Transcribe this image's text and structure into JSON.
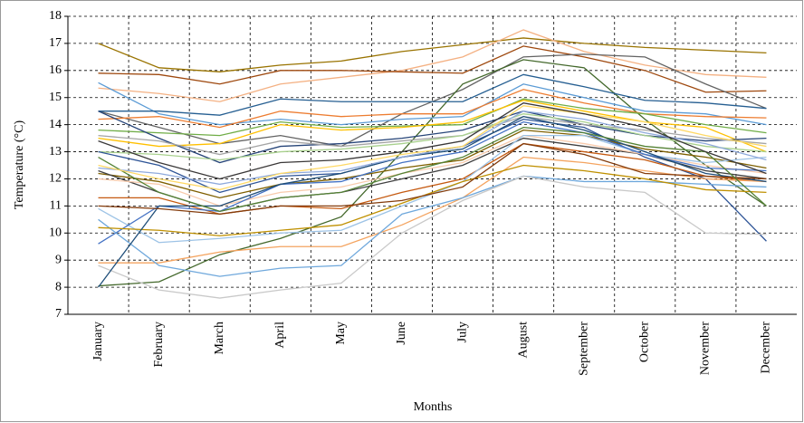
{
  "chart_data": {
    "type": "line",
    "x_label": "Months",
    "y_label": "Temperature (°C)",
    "categories": [
      "January",
      "February",
      "March",
      "April",
      "May",
      "June",
      "July",
      "August",
      "September",
      "October",
      "November",
      "December"
    ],
    "ylim": [
      7,
      18
    ],
    "yticks": [
      7,
      8,
      9,
      10,
      11,
      12,
      13,
      14,
      15,
      16,
      17,
      18
    ],
    "grid": true,
    "series": [
      {
        "color": "#997300",
        "values": [
          17,
          16.1,
          15.95,
          16.2,
          16.35,
          16.7,
          16.95,
          17.2,
          17.0,
          16.85,
          16.75,
          16.65
        ]
      },
      {
        "color": "#f4b183",
        "values": [
          15.35,
          15.15,
          14.85,
          15.5,
          15.75,
          16.0,
          16.5,
          17.5,
          16.7,
          16.2,
          15.85,
          15.75
        ]
      },
      {
        "color": "#9e480e",
        "values": [
          15.9,
          15.85,
          15.5,
          16.0,
          16.0,
          15.95,
          15.9,
          16.9,
          16.5,
          16.0,
          15.2,
          15.25
        ]
      },
      {
        "color": "#636363",
        "values": [
          14.5,
          13.9,
          13.3,
          13.6,
          13.2,
          14.4,
          15.3,
          16.5,
          16.6,
          16.5,
          15.5,
          14.6
        ]
      },
      {
        "color": "#43682b",
        "values": [
          8.05,
          8.2,
          9.2,
          9.8,
          10.6,
          13.0,
          15.5,
          16.4,
          16.1,
          14.2,
          12.5,
          11.0
        ]
      },
      {
        "color": "#5b9bd5",
        "values": [
          15.55,
          14.4,
          14.0,
          14.2,
          14.0,
          14.2,
          14.3,
          15.5,
          15.0,
          14.5,
          14.4,
          14.0
        ]
      },
      {
        "color": "#255e91",
        "values": [
          14.5,
          14.5,
          14.35,
          14.95,
          14.85,
          14.85,
          14.85,
          15.85,
          15.4,
          14.9,
          14.8,
          14.6
        ]
      },
      {
        "color": "#ed7d31",
        "values": [
          14.2,
          14.3,
          13.9,
          14.5,
          14.3,
          14.4,
          14.4,
          15.3,
          14.8,
          14.4,
          14.3,
          14.25
        ]
      },
      {
        "color": "#70ad47",
        "values": [
          13.8,
          13.7,
          13.6,
          14.1,
          13.9,
          13.95,
          14.0,
          14.95,
          14.6,
          14.4,
          14.0,
          13.7
        ]
      },
      {
        "color": "#ffc000",
        "values": [
          13.5,
          13.2,
          13.3,
          14.0,
          13.8,
          13.9,
          14.1,
          14.9,
          14.5,
          14.1,
          13.9,
          13.0
        ]
      },
      {
        "color": "#264478",
        "values": [
          14.5,
          13.5,
          12.6,
          13.2,
          13.3,
          13.5,
          13.8,
          14.5,
          14.0,
          13.6,
          13.4,
          13.5
        ]
      },
      {
        "color": "#a5a5a5",
        "values": [
          13.6,
          13.4,
          12.9,
          13.4,
          13.2,
          13.4,
          13.6,
          14.3,
          14.0,
          13.8,
          13.5,
          13.3
        ]
      },
      {
        "color": "#a9d18e",
        "values": [
          13.0,
          12.9,
          12.7,
          13.0,
          13.1,
          13.3,
          13.6,
          14.4,
          14.1,
          13.6,
          13.2,
          13.0
        ]
      },
      {
        "color": "#2f5597",
        "values": [
          13.0,
          12.5,
          11.5,
          12.1,
          12.2,
          12.8,
          13.2,
          14.2,
          13.9,
          12.8,
          12.0,
          9.7
        ]
      },
      {
        "color": "#7f6000",
        "values": [
          12.2,
          11.9,
          11.3,
          11.8,
          12.0,
          12.4,
          12.7,
          13.8,
          13.6,
          13.1,
          12.8,
          12.4
        ]
      },
      {
        "color": "#404040",
        "values": [
          12.3,
          11.5,
          10.8,
          11.3,
          11.5,
          12.0,
          12.5,
          13.5,
          13.2,
          12.9,
          12.3,
          12.0
        ]
      },
      {
        "color": "#f8cbad",
        "values": [
          12.0,
          11.8,
          11.0,
          11.5,
          11.7,
          12.2,
          12.6,
          13.6,
          13.3,
          12.9,
          12.5,
          12.2
        ]
      },
      {
        "color": "#c55a11",
        "values": [
          11.3,
          11.3,
          10.7,
          11.0,
          10.9,
          11.5,
          12.0,
          13.3,
          13.0,
          12.7,
          12.1,
          11.9
        ]
      },
      {
        "color": "#9dc3e6",
        "values": [
          10.9,
          9.65,
          9.8,
          10.0,
          10.1,
          11.0,
          11.9,
          13.6,
          13.6,
          12.9,
          12.6,
          12.8
        ]
      },
      {
        "color": "#4472c4",
        "values": [
          9.6,
          11.0,
          10.8,
          11.8,
          11.9,
          12.6,
          13.0,
          14.1,
          13.7,
          12.9,
          12.4,
          12.3
        ]
      },
      {
        "color": "#f4a460",
        "values": [
          8.9,
          8.9,
          9.3,
          9.5,
          9.5,
          10.3,
          11.3,
          12.8,
          12.6,
          12.3,
          12.0,
          11.9
        ]
      },
      {
        "color": "#6fa8dc",
        "values": [
          10.5,
          8.8,
          8.4,
          8.7,
          8.8,
          10.7,
          11.3,
          12.1,
          11.9,
          11.9,
          11.8,
          11.7
        ]
      },
      {
        "color": "#c9c9c9",
        "values": [
          8.8,
          7.9,
          7.6,
          7.9,
          8.15,
          10.0,
          11.2,
          12.1,
          11.7,
          11.5,
          10.0,
          9.95
        ]
      },
      {
        "color": "#bf9000",
        "values": [
          10.2,
          10.1,
          9.9,
          10.1,
          10.3,
          11.1,
          11.9,
          12.5,
          12.3,
          12.0,
          11.6,
          11.5
        ]
      },
      {
        "color": "#1f4e79",
        "values": [
          8.0,
          11.0,
          11.0,
          11.8,
          12.2,
          12.8,
          13.1,
          14.3,
          13.8,
          13.0,
          12.2,
          11.9
        ]
      },
      {
        "color": "#843c0c",
        "values": [
          11.0,
          10.9,
          10.7,
          11.0,
          11.0,
          11.2,
          11.7,
          13.3,
          12.9,
          12.2,
          12.1,
          12.0
        ]
      },
      {
        "color": "#548235",
        "values": [
          12.8,
          11.5,
          10.8,
          11.3,
          11.5,
          12.2,
          12.8,
          13.9,
          13.7,
          13.2,
          13.0,
          11.0
        ]
      },
      {
        "color": "#8faadc",
        "values": [
          12.4,
          12.2,
          11.8,
          12.2,
          12.3,
          12.8,
          13.2,
          14.5,
          14.2,
          13.7,
          13.3,
          12.7
        ]
      },
      {
        "color": "#ffd966",
        "values": [
          12.5,
          12.0,
          11.6,
          12.2,
          12.5,
          12.9,
          13.2,
          14.7,
          14.4,
          14.1,
          13.6,
          13.2
        ]
      },
      {
        "color": "#3a3838",
        "values": [
          13.4,
          12.6,
          12.0,
          12.6,
          12.7,
          13.0,
          13.4,
          14.8,
          14.4,
          13.9,
          13.0,
          12.2
        ]
      }
    ]
  }
}
